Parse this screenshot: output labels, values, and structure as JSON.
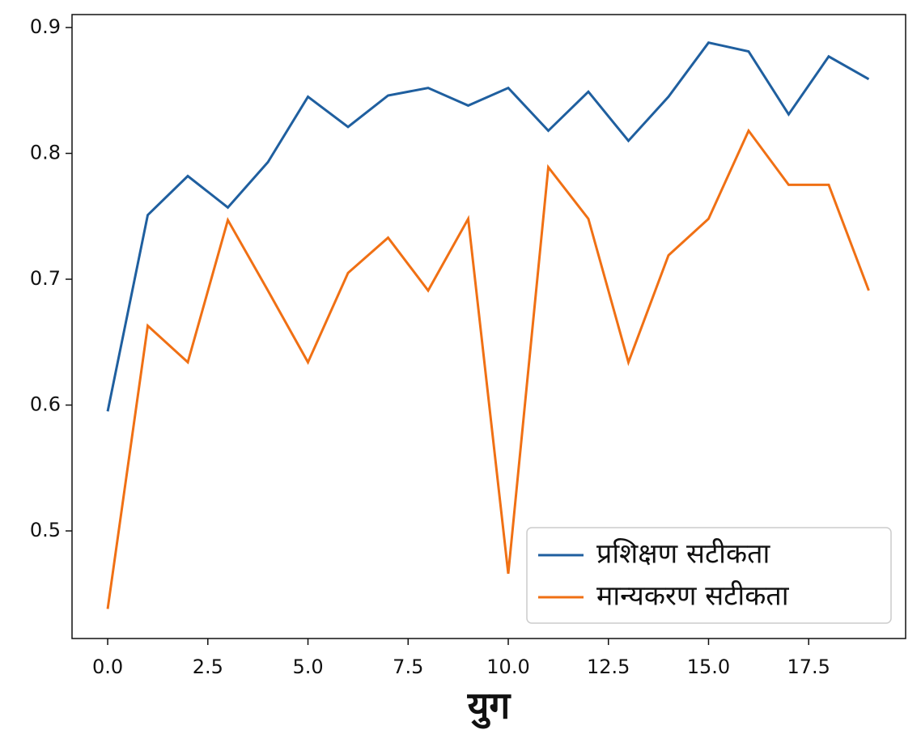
{
  "chart_data": {
    "type": "line",
    "x": [
      0,
      1,
      2,
      3,
      4,
      5,
      6,
      7,
      8,
      9,
      10,
      11,
      12,
      13,
      14,
      15,
      16,
      17,
      18,
      19
    ],
    "xlabel": "युग",
    "series": [
      {
        "name": "प्रशिक्षण सटीकता",
        "color": "#1f5f9f",
        "values": [
          0.595,
          0.751,
          0.782,
          0.757,
          0.793,
          0.845,
          0.821,
          0.846,
          0.852,
          0.838,
          0.852,
          0.818,
          0.849,
          0.81,
          0.845,
          0.888,
          0.881,
          0.831,
          0.877,
          0.859
        ]
      },
      {
        "name": "मान्यकरण सटीकता",
        "color": "#f07014",
        "values": [
          0.438,
          0.663,
          0.634,
          0.747,
          0.691,
          0.634,
          0.705,
          0.733,
          0.691,
          0.748,
          0.466,
          0.789,
          0.748,
          0.634,
          0.719,
          0.748,
          0.818,
          0.775,
          0.775,
          0.691
        ]
      }
    ],
    "xlim": [
      -0.89,
      19.92
    ],
    "ylim": [
      0.4145,
      0.9103
    ],
    "xticks": [
      {
        "value": 0,
        "label": "0.0"
      },
      {
        "value": 2.5,
        "label": "2.5"
      },
      {
        "value": 5,
        "label": "5.0"
      },
      {
        "value": 7.5,
        "label": "7.5"
      },
      {
        "value": 10,
        "label": "10.0"
      },
      {
        "value": 12.5,
        "label": "12.5"
      },
      {
        "value": 15,
        "label": "15.0"
      },
      {
        "value": 17.5,
        "label": "17.5"
      }
    ],
    "yticks": [
      0.5,
      0.6,
      0.7,
      0.8,
      0.9
    ],
    "legend": "lower right"
  }
}
